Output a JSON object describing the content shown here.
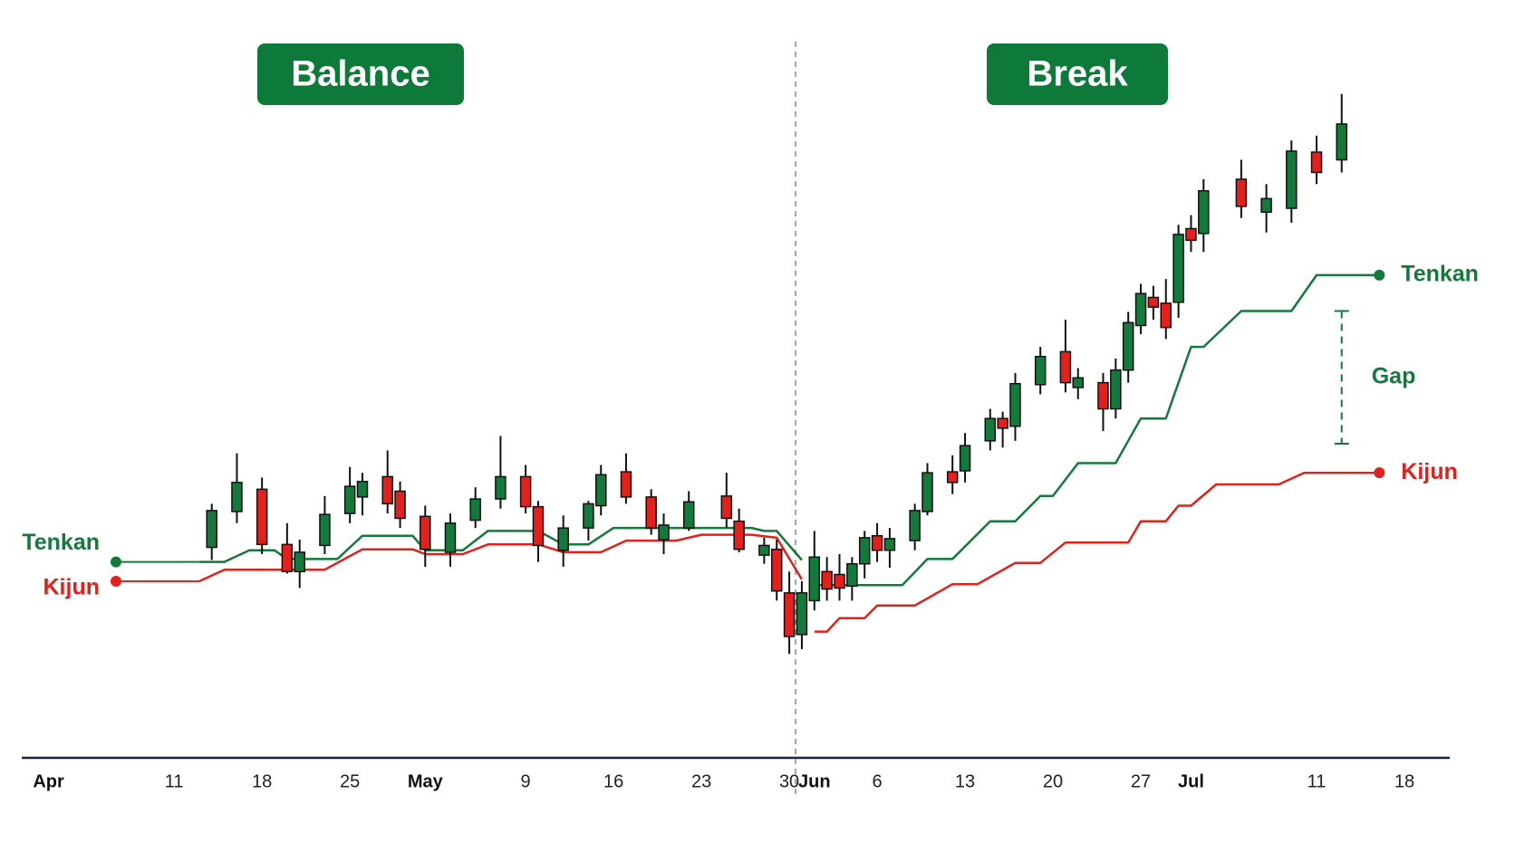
{
  "chart_data": {
    "type": "candlestick",
    "phase_labels": [
      "Balance",
      "Break"
    ],
    "divider_x": 59.5,
    "xlim": [
      0,
      108
    ],
    "ylim": [
      0,
      80
    ],
    "xticks": [
      {
        "value": 0,
        "label": "Apr"
      },
      {
        "value": 10,
        "label": "11"
      },
      {
        "value": 17,
        "label": "18"
      },
      {
        "value": 24,
        "label": "25"
      },
      {
        "value": 30,
        "label": "May"
      },
      {
        "value": 38,
        "label": "9"
      },
      {
        "value": 45,
        "label": "16"
      },
      {
        "value": 52,
        "label": "23"
      },
      {
        "value": 59,
        "label": "30"
      },
      {
        "value": 61,
        "label": "Jun"
      },
      {
        "value": 66,
        "label": "6"
      },
      {
        "value": 73,
        "label": "13"
      },
      {
        "value": 80,
        "label": "20"
      },
      {
        "value": 87,
        "label": "27"
      },
      {
        "value": 91,
        "label": "Jul"
      },
      {
        "value": 101,
        "label": "11"
      },
      {
        "value": 108,
        "label": "18"
      }
    ],
    "up_color": "#137a3c",
    "down_color": "#e3201b",
    "x": [
      13,
      15,
      17,
      19,
      20,
      22,
      24,
      25,
      27,
      28,
      30,
      32,
      34,
      36,
      38,
      39,
      41,
      43,
      44,
      46,
      48,
      49,
      51,
      54,
      55,
      57,
      58,
      59,
      60,
      61,
      62,
      63,
      64,
      65,
      66,
      67,
      69,
      70,
      72,
      73,
      75,
      76,
      77,
      79,
      81,
      82,
      84,
      85,
      86,
      87,
      88,
      89,
      90,
      91,
      92,
      95,
      97,
      99,
      101,
      103
    ],
    "open": [
      23.5,
      27.2,
      29.5,
      23.8,
      21.0,
      23.7,
      27.0,
      28.7,
      30.8,
      29.3,
      26.7,
      23.0,
      26.3,
      28.5,
      30.8,
      27.7,
      23.2,
      25.5,
      27.8,
      31.3,
      28.7,
      24.3,
      25.5,
      28.8,
      26.2,
      22.7,
      23.3,
      18.8,
      14.5,
      18.0,
      21.0,
      20.7,
      19.5,
      21.8,
      24.7,
      23.2,
      24.2,
      27.2,
      31.3,
      31.4,
      34.5,
      36.8,
      36.0,
      40.3,
      43.7,
      40.0,
      40.5,
      37.8,
      41.8,
      46.4,
      49.3,
      48.7,
      48.8,
      56.4,
      55.9,
      61.5,
      58.1,
      58.5,
      64.3,
      63.5
    ],
    "high": [
      28.0,
      33.2,
      30.7,
      26.0,
      24.3,
      28.8,
      31.8,
      31.2,
      33.5,
      30.3,
      27.8,
      27.0,
      29.7,
      35.0,
      32.0,
      28.3,
      26.8,
      28.3,
      32.0,
      33.2,
      29.5,
      27.0,
      29.3,
      31.2,
      27.5,
      24.5,
      24.3,
      21.0,
      20.0,
      25.2,
      22.5,
      22.8,
      22.5,
      25.2,
      26.0,
      25.5,
      28.0,
      32.2,
      33.0,
      35.3,
      37.8,
      37.5,
      41.5,
      44.2,
      47.0,
      42.0,
      41.5,
      43.0,
      47.8,
      50.7,
      50.5,
      51.2,
      56.8,
      57.8,
      61.5,
      63.5,
      61.0,
      65.5,
      66.0,
      70.3
    ],
    "low": [
      22.2,
      26.0,
      22.8,
      20.8,
      19.3,
      22.8,
      26.0,
      26.8,
      27.0,
      25.5,
      21.5,
      21.5,
      25.5,
      27.5,
      27.0,
      22.0,
      21.5,
      24.2,
      26.8,
      28.0,
      24.8,
      22.8,
      25.2,
      25.5,
      23.0,
      21.8,
      18.0,
      12.5,
      13.0,
      17.0,
      18.0,
      18.0,
      18.0,
      20.3,
      22.0,
      21.4,
      23.2,
      26.8,
      29.0,
      30.2,
      33.5,
      33.8,
      34.5,
      39.3,
      39.5,
      38.8,
      35.5,
      36.8,
      40.5,
      45.5,
      47.0,
      45.0,
      47.2,
      54.0,
      54.0,
      57.5,
      56.0,
      57.0,
      61.0,
      62.2
    ],
    "close": [
      27.3,
      30.2,
      23.8,
      21.0,
      23.0,
      26.9,
      29.8,
      30.3,
      28.0,
      26.5,
      23.3,
      26.0,
      28.5,
      30.8,
      27.7,
      23.7,
      25.5,
      28.0,
      31.0,
      28.7,
      25.5,
      25.8,
      28.2,
      26.5,
      23.3,
      23.7,
      19.0,
      14.3,
      18.8,
      22.5,
      19.2,
      19.3,
      21.8,
      24.5,
      23.2,
      24.4,
      27.3,
      31.2,
      30.2,
      34.0,
      36.8,
      35.8,
      40.4,
      43.2,
      40.5,
      41.0,
      37.8,
      41.8,
      46.7,
      49.7,
      48.3,
      46.2,
      55.8,
      55.2,
      60.3,
      58.7,
      59.5,
      64.4,
      62.2,
      67.2
    ],
    "series": [
      {
        "name": "Tenkan",
        "color": "#137a3c",
        "x": [
          12,
          14,
          16,
          18,
          19,
          23,
          25,
          29,
          30,
          33,
          35,
          39,
          41,
          43,
          45,
          56,
          57,
          58,
          60,
          null,
          61,
          68,
          70,
          72,
          75,
          77,
          79,
          80,
          82,
          85,
          87,
          89,
          91,
          92,
          95,
          99,
          101,
          106
        ],
        "values": [
          22.0,
          22.0,
          23.2,
          23.2,
          22.3,
          22.3,
          24.7,
          24.7,
          23.2,
          23.2,
          25.2,
          25.2,
          23.8,
          23.8,
          25.5,
          25.5,
          25.2,
          25.2,
          22.2,
          null,
          19.6,
          19.6,
          22.3,
          22.3,
          26.2,
          26.2,
          28.8,
          28.8,
          32.2,
          32.2,
          36.8,
          36.8,
          44.2,
          44.2,
          47.9,
          47.9,
          51.6,
          51.6
        ]
      },
      {
        "name": "Kijun",
        "color": "#e3201b",
        "x": [
          12,
          14,
          22,
          25,
          29,
          30,
          33,
          35,
          39,
          41,
          44,
          46,
          50,
          52,
          56,
          58,
          60,
          null,
          61,
          62,
          63,
          65,
          66,
          69,
          72,
          74,
          77,
          79,
          81,
          86,
          87,
          89,
          90,
          91,
          93,
          98,
          100,
          106
        ],
        "values": [
          20.0,
          21.2,
          21.2,
          23.3,
          23.3,
          22.8,
          22.8,
          23.8,
          23.8,
          23.0,
          23.0,
          24.2,
          24.2,
          24.8,
          24.8,
          24.5,
          20.2,
          null,
          14.8,
          14.8,
          16.2,
          16.2,
          17.5,
          17.5,
          19.7,
          19.7,
          21.9,
          21.9,
          24.0,
          24.0,
          26.2,
          26.2,
          27.8,
          27.8,
          30.0,
          30.0,
          31.2,
          31.2
        ]
      }
    ],
    "gap": {
      "label": "Gap",
      "x": 103,
      "from": 47.9,
      "to": 34.2
    }
  }
}
